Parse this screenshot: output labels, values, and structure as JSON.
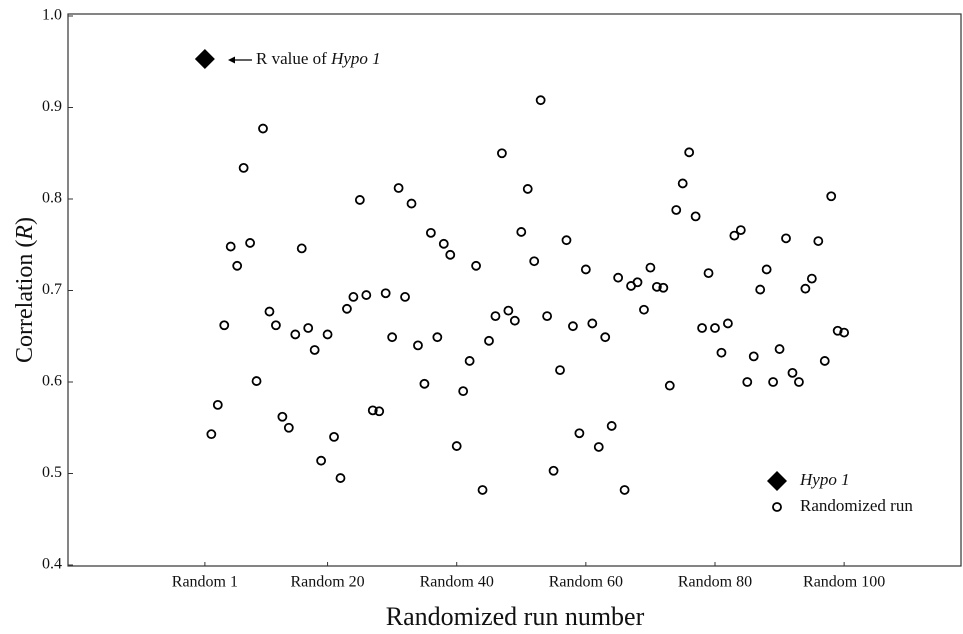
{
  "chart_data": {
    "type": "scatter",
    "xlabel": "Randomized run number",
    "ylabel": [
      "Correlation (",
      "R",
      ")"
    ],
    "annotation": "R value of",
    "xlim": [
      -20.2,
      118.1
    ],
    "xticks": [
      {
        "value": 1,
        "label": "Random 1"
      },
      {
        "value": 20,
        "label": "Random 20"
      },
      {
        "value": 40,
        "label": "Random 40"
      },
      {
        "value": 60,
        "label": "Random 60"
      },
      {
        "value": 80,
        "label": "Random 80"
      },
      {
        "value": 100,
        "label": "Random 100"
      }
    ],
    "ylim": [
      0.4,
      1.0
    ],
    "yticks": [
      0.4,
      0.5,
      0.6,
      0.7,
      0.8,
      0.9,
      {
        "value": 1,
        "label": "1.0"
      }
    ],
    "grid": false,
    "legend": "lower right",
    "series": [
      {
        "name": "Hypo 1",
        "marker": "diamond",
        "color": "#000000",
        "x": [
          1
        ],
        "values": [
          0.953
        ]
      },
      {
        "name": "Randomized run",
        "marker": "circle",
        "color": "#000000",
        "x": [
          2,
          3,
          4,
          5,
          6,
          7,
          8,
          9,
          10,
          11,
          12,
          13,
          14,
          15,
          16,
          17,
          18,
          19,
          20,
          21,
          22,
          23,
          24,
          25,
          26,
          27,
          28,
          29,
          30,
          31,
          32,
          33,
          34,
          35,
          36,
          37,
          38,
          39,
          40,
          41,
          42,
          43,
          44,
          45,
          46,
          47,
          48,
          49,
          50,
          51,
          52,
          53,
          54,
          55,
          56,
          57,
          58,
          59,
          60,
          61,
          62,
          63,
          64,
          65,
          66,
          67,
          68,
          69,
          70,
          71,
          72,
          73,
          74,
          75,
          76,
          77,
          78,
          79,
          80,
          81,
          82,
          83,
          84,
          85,
          86,
          87,
          88,
          89,
          90,
          91,
          92,
          93,
          94,
          95,
          96,
          97,
          98,
          99,
          100
        ],
        "values": [
          0.543,
          0.575,
          0.662,
          0.748,
          0.727,
          0.834,
          0.752,
          0.601,
          0.877,
          0.677,
          0.662,
          0.562,
          0.55,
          0.652,
          0.746,
          0.659,
          0.635,
          0.514,
          0.652,
          0.54,
          0.495,
          0.68,
          0.693,
          0.799,
          0.695,
          0.569,
          0.568,
          0.697,
          0.649,
          0.812,
          0.693,
          0.795,
          0.64,
          0.598,
          0.763,
          0.649,
          0.751,
          0.739,
          0.53,
          0.59,
          0.623,
          0.727,
          0.482,
          0.645,
          0.672,
          0.85,
          0.678,
          0.667,
          0.764,
          0.811,
          0.732,
          0.908,
          0.672,
          0.503,
          0.613,
          0.755,
          0.661,
          0.544,
          0.723,
          0.664,
          0.529,
          0.649,
          0.552,
          0.714,
          0.482,
          0.705,
          0.709,
          0.679,
          0.725,
          0.704,
          0.703,
          0.596,
          0.788,
          0.817,
          0.851,
          0.781,
          0.659,
          0.719,
          0.659,
          0.632,
          0.664,
          0.76,
          0.766,
          0.6,
          0.628,
          0.701,
          0.723,
          0.6,
          0.636,
          0.757,
          0.61,
          0.6,
          0.702,
          0.713,
          0.754,
          0.623,
          0.803,
          0.656,
          0.654
        ]
      }
    ]
  }
}
